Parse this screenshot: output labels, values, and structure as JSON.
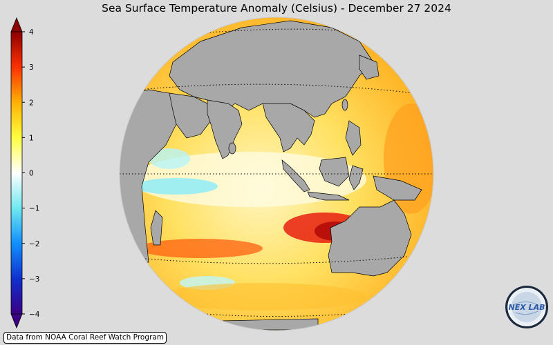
{
  "title": "Sea Surface Temperature Anomaly (Celsius) - December 27 2024",
  "colorbar": {
    "min": -4,
    "max": 4,
    "tick_labels": [
      "4",
      "3",
      "2",
      "1",
      "0",
      "−1",
      "−2",
      "−3",
      "−4"
    ],
    "colors": [
      "#3b0084",
      "#1030d0",
      "#1090ff",
      "#70e8f0",
      "#ffffff",
      "#ffff40",
      "#ffb000",
      "#ff3000",
      "#8c0000"
    ]
  },
  "map": {
    "land_color": "#a8a8a8",
    "ocean_warm_color": "#ffd24a",
    "hot_spot_color": "#d01010",
    "cool_spot_color": "#90ecf8"
  },
  "credit": "Data from NOAA Coral Reef Watch Program",
  "logo": {
    "text": "NEX LAB"
  }
}
